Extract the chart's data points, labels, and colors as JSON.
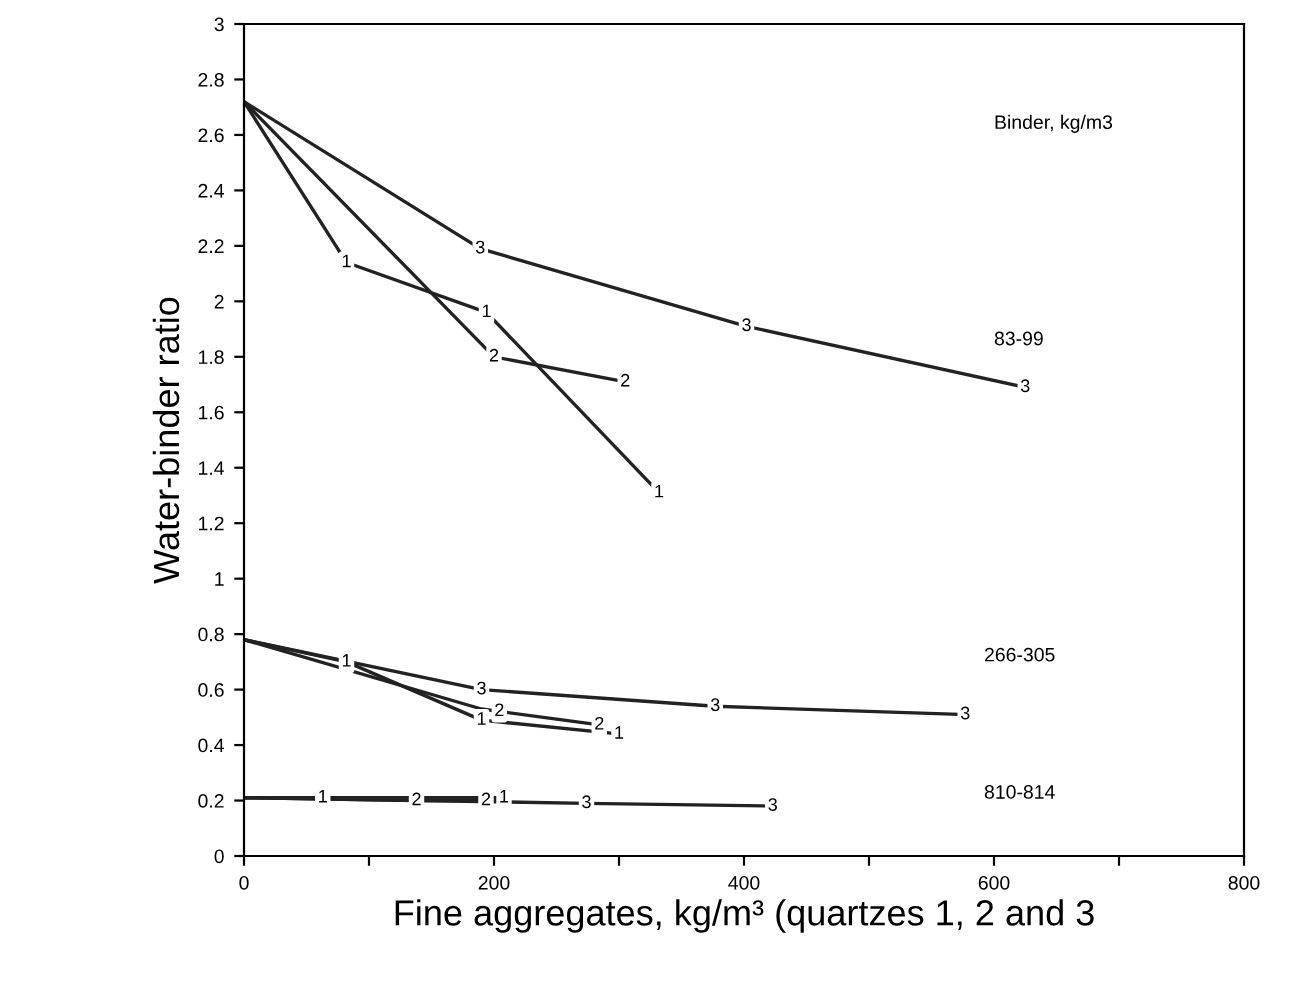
{
  "chart_data": {
    "type": "line",
    "xlabel": "Fine aggregates, kg/m³ (quartzes 1, 2 and 3",
    "ylabel": "Water-binder ratio",
    "xlim": [
      0,
      800
    ],
    "ylim": [
      0,
      3
    ],
    "xticks": [
      0,
      {
        "value": 100,
        "label": null
      },
      200,
      {
        "value": 300,
        "label": null
      },
      400,
      {
        "value": 500,
        "label": null
      },
      600,
      {
        "value": 700,
        "label": null
      },
      800
    ],
    "yticks": [
      0,
      0.2,
      0.4,
      0.6,
      0.8,
      1,
      1.2,
      1.4,
      1.6,
      1.8,
      2,
      2.2,
      2.4,
      2.6,
      2.8,
      3
    ],
    "grid": false,
    "line_style": "solid",
    "series": [
      {
        "name": "1",
        "color": "#222222",
        "x": [
          0,
          82,
          194,
          332
        ],
        "values": [
          2.72,
          2.14,
          1.96,
          1.31
        ]
      },
      {
        "name": "2",
        "color": "#222222",
        "x": [
          0,
          200,
          305
        ],
        "values": [
          2.72,
          1.8,
          1.71
        ]
      },
      {
        "name": "3",
        "color": "#222222",
        "x": [
          0,
          189,
          402,
          625
        ],
        "values": [
          2.72,
          2.19,
          1.91,
          1.69
        ]
      },
      {
        "name": "1",
        "color": "#222222",
        "x": [
          0,
          82,
          190,
          300
        ],
        "values": [
          0.78,
          0.7,
          0.49,
          0.44
        ]
      },
      {
        "name": "2",
        "color": "#222222",
        "x": [
          0,
          190,
          289
        ],
        "values": [
          0.78,
          0.53,
          0.47
        ]
      },
      {
        "name": "3",
        "color": "#222222",
        "x": [
          0,
          190,
          377,
          577
        ],
        "values": [
          0.78,
          0.6,
          0.54,
          0.51
        ]
      },
      {
        "name": "1",
        "color": "#222222",
        "x": [
          0,
          63,
          208
        ],
        "values": [
          0.21,
          0.21,
          0.21
        ]
      },
      {
        "name": "2",
        "color": "#222222",
        "x": [
          0,
          138,
          208
        ],
        "values": [
          0.21,
          0.2,
          0.2
        ]
      },
      {
        "name": "3",
        "color": "#222222",
        "x": [
          0,
          274,
          423
        ],
        "values": [
          0.21,
          0.19,
          0.18
        ]
      }
    ],
    "annotations": [
      "Binder, kg/m3",
      "83-99",
      "266-305",
      "810-814"
    ]
  }
}
